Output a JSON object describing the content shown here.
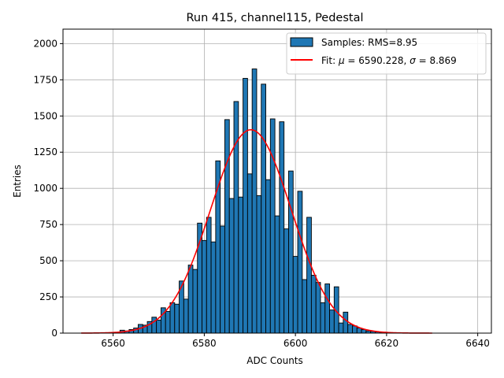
{
  "chart_data": {
    "type": "bar",
    "title": "Run 415, channel115, Pedestal",
    "xlabel": "ADC Counts",
    "ylabel": "Entries",
    "xlim": [
      6549,
      6643
    ],
    "ylim": [
      0,
      2100
    ],
    "xticks": [
      6560,
      6580,
      6600,
      6620,
      6640
    ],
    "yticks": [
      0,
      250,
      500,
      750,
      1000,
      1250,
      1500,
      1750,
      2000
    ],
    "grid": true,
    "legend_position": "top-right",
    "bar_color": "#1f77b4",
    "fit_color": "#ff0000",
    "histogram": {
      "name": "Samples: RMS=8.95",
      "bins": [
        {
          "x": 6562,
          "y": 20
        },
        {
          "x": 6563,
          "y": 15
        },
        {
          "x": 6564,
          "y": 25
        },
        {
          "x": 6565,
          "y": 35
        },
        {
          "x": 6566,
          "y": 60
        },
        {
          "x": 6567,
          "y": 55
        },
        {
          "x": 6568,
          "y": 80
        },
        {
          "x": 6569,
          "y": 110
        },
        {
          "x": 6570,
          "y": 90
        },
        {
          "x": 6571,
          "y": 175
        },
        {
          "x": 6572,
          "y": 150
        },
        {
          "x": 6573,
          "y": 210
        },
        {
          "x": 6574,
          "y": 200
        },
        {
          "x": 6575,
          "y": 360
        },
        {
          "x": 6576,
          "y": 235
        },
        {
          "x": 6577,
          "y": 470
        },
        {
          "x": 6578,
          "y": 440
        },
        {
          "x": 6579,
          "y": 760
        },
        {
          "x": 6580,
          "y": 640
        },
        {
          "x": 6581,
          "y": 800
        },
        {
          "x": 6582,
          "y": 630
        },
        {
          "x": 6583,
          "y": 1190
        },
        {
          "x": 6584,
          "y": 740
        },
        {
          "x": 6585,
          "y": 1475
        },
        {
          "x": 6586,
          "y": 930
        },
        {
          "x": 6587,
          "y": 1600
        },
        {
          "x": 6588,
          "y": 940
        },
        {
          "x": 6589,
          "y": 1760
        },
        {
          "x": 6590,
          "y": 1100
        },
        {
          "x": 6591,
          "y": 1825
        },
        {
          "x": 6592,
          "y": 950
        },
        {
          "x": 6593,
          "y": 1720
        },
        {
          "x": 6594,
          "y": 1060
        },
        {
          "x": 6595,
          "y": 1480
        },
        {
          "x": 6596,
          "y": 810
        },
        {
          "x": 6597,
          "y": 1460
        },
        {
          "x": 6598,
          "y": 720
        },
        {
          "x": 6599,
          "y": 1120
        },
        {
          "x": 6600,
          "y": 530
        },
        {
          "x": 6601,
          "y": 980
        },
        {
          "x": 6602,
          "y": 370
        },
        {
          "x": 6603,
          "y": 800
        },
        {
          "x": 6604,
          "y": 400
        },
        {
          "x": 6605,
          "y": 350
        },
        {
          "x": 6606,
          "y": 210
        },
        {
          "x": 6607,
          "y": 340
        },
        {
          "x": 6608,
          "y": 160
        },
        {
          "x": 6609,
          "y": 320
        },
        {
          "x": 6610,
          "y": 70
        },
        {
          "x": 6611,
          "y": 145
        },
        {
          "x": 6612,
          "y": 60
        },
        {
          "x": 6613,
          "y": 50
        },
        {
          "x": 6614,
          "y": 35
        },
        {
          "x": 6615,
          "y": 25
        },
        {
          "x": 6616,
          "y": 15
        },
        {
          "x": 6617,
          "y": 12
        },
        {
          "x": 6618,
          "y": 8
        },
        {
          "x": 6619,
          "y": 5
        }
      ]
    },
    "fit": {
      "name": "Fit: μ = 6590.228, σ = 8.869",
      "label_prefix": "Fit: ",
      "mu_symbol": "μ",
      "mu_text": " = 6590.228, ",
      "sigma_symbol": "σ",
      "sigma_text": " = 8.869",
      "mu": 6590.228,
      "sigma": 8.869,
      "amplitude": 1405,
      "x_range": [
        6553,
        6630
      ]
    }
  }
}
